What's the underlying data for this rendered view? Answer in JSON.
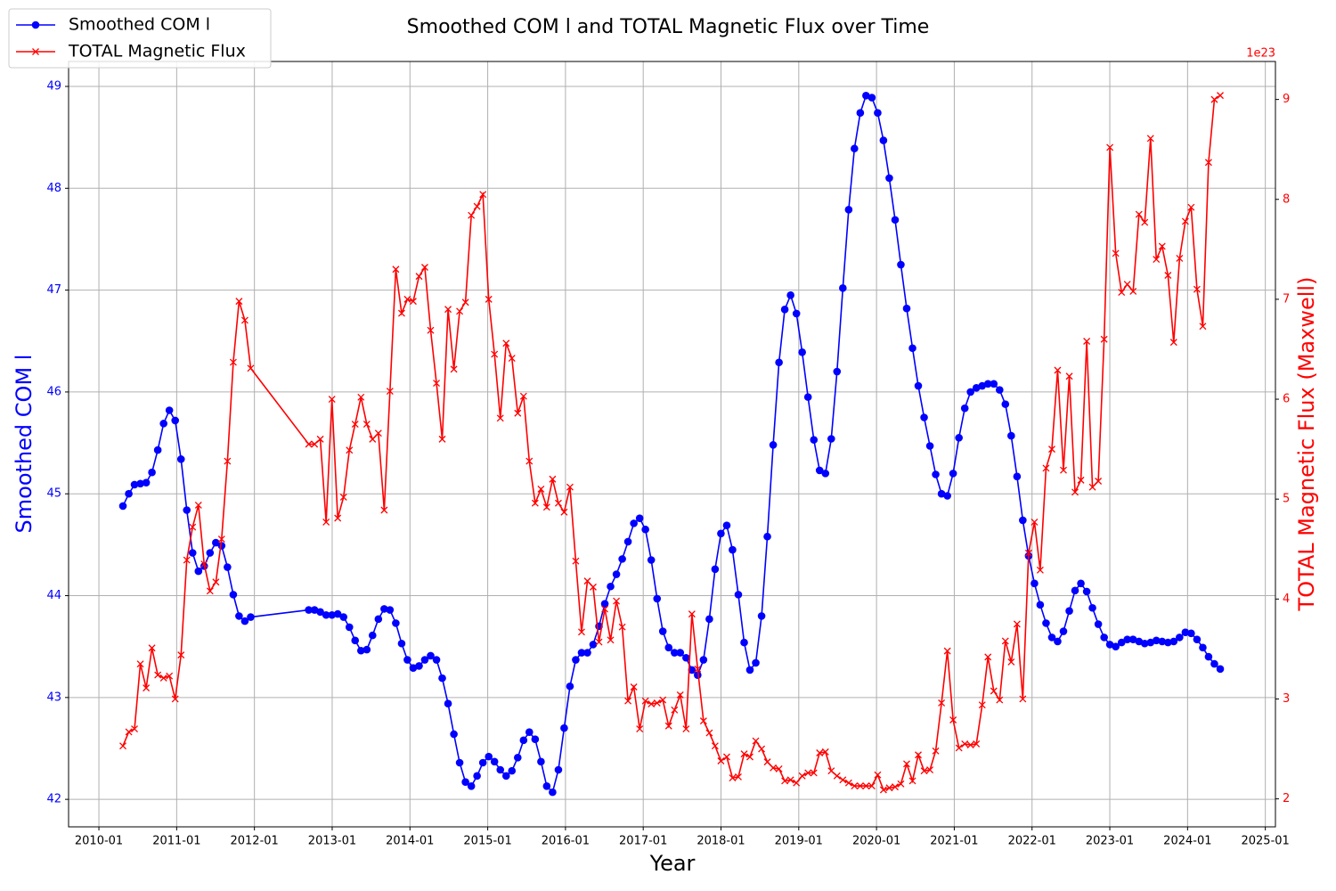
{
  "chart_data": {
    "type": "line",
    "title": "Smoothed COM l and TOTAL Magnetic Flux over Time",
    "x_label": "Year",
    "y_label": "Smoothed COM l",
    "y2_label": "TOTAL Magnetic Flux (Maxwell)",
    "y2_offset_label": "1e23",
    "legend": "upper left",
    "grid": true,
    "xlim": [
      2009.61,
      2025.13
    ],
    "xticks": [
      {
        "value": 2010,
        "label": "2010-01"
      },
      {
        "value": 2011,
        "label": "2011-01"
      },
      {
        "value": 2012,
        "label": "2012-01"
      },
      {
        "value": 2013,
        "label": "2013-01"
      },
      {
        "value": 2014,
        "label": "2014-01"
      },
      {
        "value": 2015,
        "label": "2015-01"
      },
      {
        "value": 2016,
        "label": "2016-01"
      },
      {
        "value": 2017,
        "label": "2017-01"
      },
      {
        "value": 2018,
        "label": "2018-01"
      },
      {
        "value": 2019,
        "label": "2019-01"
      },
      {
        "value": 2020,
        "label": "2020-01"
      },
      {
        "value": 2021,
        "label": "2021-01"
      },
      {
        "value": 2022,
        "label": "2022-01"
      },
      {
        "value": 2023,
        "label": "2023-01"
      },
      {
        "value": 2024,
        "label": "2024-01"
      },
      {
        "value": 2025,
        "label": "2025-01"
      }
    ],
    "ylim": [
      41.73,
      49.245
    ],
    "yticks": [
      42,
      43,
      44,
      45,
      46,
      47,
      48,
      49
    ],
    "y2lim": [
      1.72,
      9.38
    ],
    "y2ticks": [
      2,
      3,
      4,
      5,
      6,
      7,
      8,
      9
    ],
    "x": [
      2010.309,
      2010.384,
      2010.458,
      2010.533,
      2010.608,
      2010.682,
      2010.757,
      2010.832,
      2010.906,
      2010.981,
      2011.056,
      2011.13,
      2011.205,
      2011.28,
      2011.354,
      2011.429,
      2011.504,
      2011.578,
      2011.653,
      2011.728,
      2011.802,
      2011.877,
      2011.952,
      2012.698,
      2012.773,
      2012.847,
      2012.922,
      2012.997,
      2013.071,
      2013.146,
      2013.221,
      2013.295,
      2013.37,
      2013.445,
      2013.519,
      2013.594,
      2013.669,
      2013.743,
      2013.818,
      2013.893,
      2013.967,
      2014.042,
      2014.117,
      2014.191,
      2014.266,
      2014.341,
      2014.415,
      2014.49,
      2014.565,
      2014.639,
      2014.714,
      2014.789,
      2014.863,
      2014.938,
      2015.013,
      2015.087,
      2015.162,
      2015.237,
      2015.311,
      2015.386,
      2015.461,
      2015.535,
      2015.61,
      2015.685,
      2015.759,
      2015.834,
      2015.909,
      2015.983,
      2016.058,
      2016.132,
      2016.207,
      2016.282,
      2016.356,
      2016.431,
      2016.506,
      2016.58,
      2016.655,
      2016.73,
      2016.804,
      2016.879,
      2016.954,
      2017.028,
      2017.103,
      2017.178,
      2017.252,
      2017.327,
      2017.402,
      2017.476,
      2017.551,
      2017.626,
      2017.7,
      2017.775,
      2017.85,
      2017.924,
      2017.999,
      2018.074,
      2018.148,
      2018.223,
      2018.298,
      2018.372,
      2018.447,
      2018.522,
      2018.596,
      2018.671,
      2018.746,
      2018.82,
      2018.895,
      2018.97,
      2019.044,
      2019.119,
      2019.194,
      2019.268,
      2019.343,
      2019.418,
      2019.492,
      2019.567,
      2019.642,
      2019.716,
      2019.791,
      2019.865,
      2019.94,
      2020.015,
      2020.089,
      2020.164,
      2020.239,
      2020.313,
      2020.388,
      2020.463,
      2020.537,
      2020.612,
      2020.687,
      2020.761,
      2020.836,
      2020.911,
      2020.985,
      2021.06,
      2021.135,
      2021.209,
      2021.284,
      2021.359,
      2021.433,
      2021.508,
      2021.583,
      2021.657,
      2021.732,
      2021.807,
      2021.881,
      2021.956,
      2022.031,
      2022.105,
      2022.18,
      2022.255,
      2022.329,
      2022.404,
      2022.479,
      2022.553,
      2022.628,
      2022.703,
      2022.777,
      2022.852,
      2022.927,
      2023.001,
      2023.076,
      2023.151,
      2023.225,
      2023.3,
      2023.375,
      2023.449,
      2023.524,
      2023.598,
      2023.673,
      2023.748,
      2023.822,
      2023.897,
      2023.972,
      2024.046,
      2024.121,
      2024.196,
      2024.27,
      2024.345,
      2024.42
    ],
    "series": [
      {
        "name": "Smoothed COM l",
        "color": "#0000ff",
        "marker": "o",
        "values": [
          44.88,
          45.0,
          45.09,
          45.1,
          45.11,
          45.21,
          45.43,
          45.69,
          45.82,
          45.72,
          45.34,
          44.84,
          44.42,
          44.24,
          44.29,
          44.42,
          44.52,
          44.49,
          44.28,
          44.01,
          43.8,
          43.75,
          43.79,
          43.86,
          43.86,
          43.84,
          43.81,
          43.81,
          43.82,
          43.79,
          43.69,
          43.56,
          43.46,
          43.47,
          43.61,
          43.77,
          43.87,
          43.86,
          43.73,
          43.53,
          43.37,
          43.29,
          43.31,
          43.37,
          43.41,
          43.37,
          43.19,
          42.94,
          42.64,
          42.36,
          42.17,
          42.13,
          42.23,
          42.36,
          42.42,
          42.37,
          42.29,
          42.23,
          42.28,
          42.41,
          42.58,
          42.66,
          42.59,
          42.37,
          42.13,
          42.07,
          42.29,
          42.7,
          43.11,
          43.37,
          43.44,
          43.44,
          43.52,
          43.7,
          43.92,
          44.09,
          44.21,
          44.36,
          44.53,
          44.71,
          44.76,
          44.65,
          44.35,
          43.97,
          43.65,
          43.49,
          43.44,
          43.44,
          43.39,
          43.27,
          43.22,
          43.37,
          43.77,
          44.26,
          44.61,
          44.69,
          44.45,
          44.01,
          43.54,
          43.27,
          43.34,
          43.8,
          44.58,
          45.48,
          46.29,
          46.81,
          46.95,
          46.77,
          46.39,
          45.95,
          45.53,
          45.23,
          45.2,
          45.54,
          46.2,
          47.02,
          47.79,
          48.39,
          48.74,
          48.91,
          48.89,
          48.74,
          48.47,
          48.1,
          47.69,
          47.25,
          46.82,
          46.43,
          46.06,
          45.75,
          45.47,
          45.19,
          45.0,
          44.98,
          45.2,
          45.55,
          45.84,
          46.0,
          46.04,
          46.06,
          46.08,
          46.08,
          46.02,
          45.88,
          45.57,
          45.17,
          44.74,
          44.39,
          44.12,
          43.91,
          43.73,
          43.59,
          43.55,
          43.65,
          43.85,
          44.05,
          44.12,
          44.04,
          43.88,
          43.72,
          43.59,
          43.52,
          43.5,
          43.54,
          43.57,
          43.57,
          43.55,
          43.53,
          43.54,
          43.56,
          43.55,
          43.54,
          43.55,
          43.59,
          43.64,
          43.63,
          43.57,
          43.49,
          43.4,
          43.33,
          43.28
        ]
      },
      {
        "name": "TOTAL Magnetic Flux",
        "color": "#ff0000",
        "marker": "x",
        "axis": "y2",
        "values": [
          2.53,
          2.67,
          2.7,
          3.35,
          3.11,
          3.51,
          3.24,
          3.21,
          3.23,
          3.0,
          3.44,
          4.39,
          4.72,
          4.94,
          4.35,
          4.08,
          4.17,
          4.6,
          5.38,
          6.37,
          6.98,
          6.79,
          6.31,
          5.55,
          5.55,
          5.6,
          4.77,
          6.0,
          4.81,
          5.02,
          5.49,
          5.75,
          6.02,
          5.75,
          5.6,
          5.66,
          4.89,
          6.08,
          7.3,
          6.86,
          7.0,
          6.98,
          7.23,
          7.32,
          6.69,
          6.16,
          5.6,
          6.9,
          6.3,
          6.88,
          6.97,
          7.84,
          7.93,
          8.05,
          7.0,
          6.45,
          5.81,
          6.56,
          6.41,
          5.86,
          6.03,
          5.38,
          4.96,
          5.1,
          4.92,
          5.2,
          4.96,
          4.87,
          5.12,
          4.38,
          3.67,
          4.18,
          4.12,
          3.57,
          3.9,
          3.59,
          3.98,
          3.72,
          2.98,
          3.12,
          2.7,
          2.98,
          2.95,
          2.96,
          2.99,
          2.73,
          2.89,
          3.04,
          2.7,
          3.85,
          3.3,
          2.78,
          2.66,
          2.53,
          2.38,
          2.42,
          2.21,
          2.22,
          2.45,
          2.42,
          2.58,
          2.5,
          2.37,
          2.31,
          2.3,
          2.18,
          2.19,
          2.16,
          2.23,
          2.26,
          2.26,
          2.46,
          2.47,
          2.28,
          2.23,
          2.19,
          2.16,
          2.13,
          2.13,
          2.13,
          2.13,
          2.24,
          2.09,
          2.11,
          2.12,
          2.15,
          2.35,
          2.18,
          2.44,
          2.28,
          2.29,
          2.48,
          2.96,
          3.48,
          2.79,
          2.51,
          2.55,
          2.54,
          2.55,
          2.94,
          3.42,
          3.08,
          2.99,
          3.58,
          3.37,
          3.75,
          3.0,
          4.46,
          4.77,
          4.29,
          5.31,
          5.5,
          6.29,
          5.29,
          6.23,
          5.07,
          5.19,
          6.58,
          5.12,
          5.18,
          6.6,
          8.52,
          7.46,
          7.07,
          7.15,
          7.08,
          7.85,
          7.77,
          8.61,
          7.4,
          7.53,
          7.24,
          6.57,
          7.41,
          7.78,
          7.92,
          7.1,
          6.73,
          8.37,
          9.0,
          9.04
        ]
      }
    ]
  }
}
